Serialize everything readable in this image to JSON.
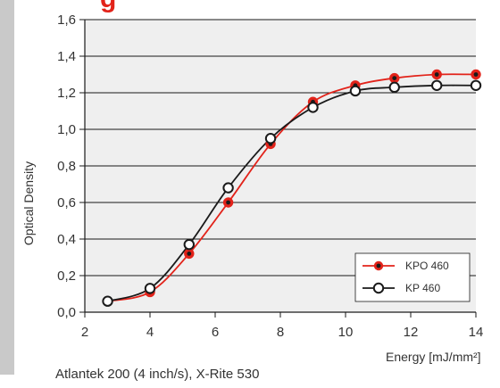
{
  "title_fragment": "g",
  "footnote": "Atlantek 200 (4 inch/s), X-Rite 530",
  "chart_data": {
    "type": "line",
    "xlabel": "Energy [mJ/mm²]",
    "ylabel": "Optical Density",
    "xlim": [
      2,
      14
    ],
    "ylim": [
      0.0,
      1.6
    ],
    "x_ticks": [
      2,
      4,
      6,
      8,
      10,
      12,
      14
    ],
    "x_tick_labels": [
      "2",
      "4",
      "6",
      "8",
      "10",
      "12",
      "14"
    ],
    "y_ticks": [
      0.0,
      0.2,
      0.4,
      0.6,
      0.8,
      1.0,
      1.2,
      1.4,
      1.6
    ],
    "y_tick_labels": [
      "0,0",
      "0,2",
      "0,4",
      "0,6",
      "0,8",
      "1,0",
      "1,2",
      "1,4",
      "1,6"
    ],
    "grid": "horizontal",
    "legend_position": "bottom-right",
    "background_color": "#efefef",
    "series": [
      {
        "name": "KPO 460",
        "color": "#e2231a",
        "marker": "filled",
        "x": [
          2.7,
          4.0,
          5.2,
          6.4,
          7.7,
          9.0,
          10.3,
          11.5,
          12.8,
          14.0
        ],
        "y": [
          0.06,
          0.11,
          0.32,
          0.6,
          0.92,
          1.15,
          1.24,
          1.28,
          1.3,
          1.3
        ]
      },
      {
        "name": "KP 460",
        "color": "#1a1a1a",
        "marker": "open",
        "x": [
          2.7,
          4.0,
          5.2,
          6.4,
          7.7,
          9.0,
          10.3,
          11.5,
          12.8,
          14.0
        ],
        "y": [
          0.06,
          0.13,
          0.37,
          0.68,
          0.95,
          1.12,
          1.21,
          1.23,
          1.24,
          1.24
        ]
      }
    ]
  }
}
